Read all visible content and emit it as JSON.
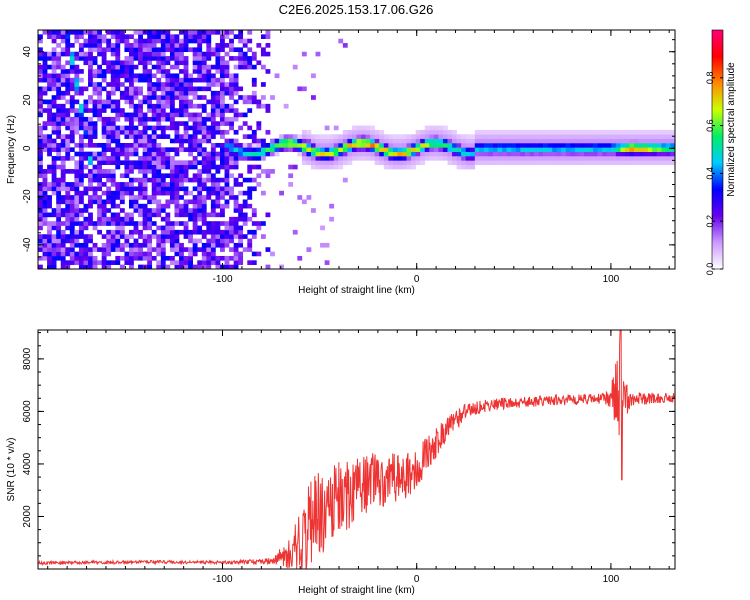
{
  "title": "C2E6.2025.153.17.06.G26",
  "chart_data": [
    {
      "type": "heatmap",
      "xlabel": "Height of straight line (km)",
      "ylabel": "Frequency (Hz)",
      "xlim": [
        -195,
        133
      ],
      "ylim": [
        -50,
        49
      ],
      "x_ticks": [
        -100,
        0,
        100
      ],
      "y_ticks": [
        -40,
        -20,
        0,
        20,
        40
      ],
      "x_tick_labels": [
        "-100",
        "0",
        "100"
      ],
      "y_tick_labels": [
        "-40",
        "-20",
        "0",
        "20",
        "40"
      ],
      "colorbar": {
        "label": "Normalized spectral amplitude",
        "range": [
          0,
          1
        ],
        "ticks": [
          0.0,
          0.2,
          0.4,
          0.6,
          0.8
        ],
        "tick_labels": [
          "0.0",
          "0.2",
          "0.4",
          "0.6",
          "0.8"
        ],
        "colormap": [
          "#ffffff",
          "#cc99ff",
          "#6600ee",
          "#0000ff",
          "#00ccff",
          "#00ee66",
          "#ccff00",
          "#ff8800",
          "#ff0000",
          "#ff0077"
        ]
      },
      "features": {
        "noise_region_x": [
          -195,
          -75
        ],
        "tone_frequency_hz": 0,
        "tone_strength_profile": [
          {
            "x": -100,
            "v": 0.45
          },
          {
            "x": -85,
            "v": 0.55
          },
          {
            "x": -70,
            "v": 0.7
          },
          {
            "x": -55,
            "v": 0.75
          },
          {
            "x": -40,
            "v": 0.7
          },
          {
            "x": -25,
            "v": 0.85
          },
          {
            "x": 0,
            "v": 0.75
          },
          {
            "x": 30,
            "v": 0.5
          },
          {
            "x": 100,
            "v": 0.5
          },
          {
            "x": 110,
            "v": 0.85
          },
          {
            "x": 133,
            "v": 0.6
          }
        ],
        "chirp_streak_x": [
          -180,
          -170
        ]
      },
      "grid": false
    },
    {
      "type": "line",
      "xlabel": "Height of straight line (km)",
      "ylabel": "SNR (10 * v/v)",
      "xlim": [
        -195,
        133
      ],
      "ylim": [
        0,
        9100
      ],
      "x_ticks": [
        -100,
        0,
        100
      ],
      "y_ticks": [
        2000,
        4000,
        6000,
        8000
      ],
      "x_tick_labels": [
        "-100",
        "0",
        "100"
      ],
      "y_tick_labels": [
        "2000",
        "4000",
        "6000",
        "8000"
      ],
      "color": "#ee3333",
      "series": [
        {
          "x": [
            -195,
            -180,
            -160,
            -140,
            -120,
            -100,
            -85,
            -75,
            -65,
            -55,
            -45,
            -35,
            -25,
            -15,
            -5,
            5,
            15,
            25,
            35,
            45,
            55,
            65,
            75,
            85,
            95,
            100,
            104,
            106,
            110,
            120,
            133
          ],
          "values": [
            220,
            240,
            250,
            270,
            260,
            250,
            280,
            300,
            600,
            1500,
            2600,
            2800,
            3300,
            3400,
            3500,
            4300,
            5300,
            6000,
            6200,
            6300,
            6350,
            6400,
            6420,
            6450,
            6480,
            6500,
            6600,
            6400,
            6450,
            6500,
            6500
          ],
          "envelope": [
            60,
            60,
            60,
            60,
            60,
            60,
            80,
            120,
            600,
            1800,
            1700,
            1300,
            1200,
            1000,
            900,
            700,
            450,
            300,
            250,
            220,
            200,
            200,
            200,
            200,
            200,
            400,
            2600,
            1200,
            250,
            220,
            200
          ]
        }
      ],
      "grid": false
    }
  ]
}
